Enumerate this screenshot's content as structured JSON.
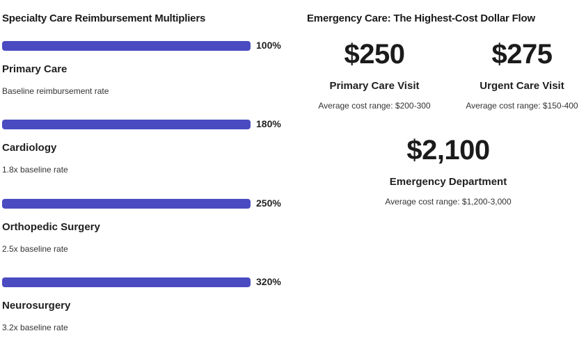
{
  "left_panel": {
    "title": "Specialty Care Reimbursement Multipliers",
    "items": [
      {
        "name": "Primary Care",
        "percent_label": "100%",
        "percent_value": 100,
        "description": "Baseline reimbursement rate",
        "bar_color": "#4a4bc0"
      },
      {
        "name": "Cardiology",
        "percent_label": "180%",
        "percent_value": 180,
        "description": "1.8x baseline rate",
        "bar_color": "#4a4bc0"
      },
      {
        "name": "Orthopedic Surgery",
        "percent_label": "250%",
        "percent_value": 250,
        "description": "2.5x baseline rate",
        "bar_color": "#4a4bc0"
      },
      {
        "name": "Neurosurgery",
        "percent_label": "320%",
        "percent_value": 320,
        "description": "3.2x baseline rate",
        "bar_color": "#4a4bc0"
      }
    ]
  },
  "right_panel": {
    "title": "Emergency Care: The Highest-Cost Dollar Flow",
    "cards": [
      {
        "amount": "$250",
        "label": "Primary Care Visit",
        "range": "Average cost range: $200-300"
      },
      {
        "amount": "$275",
        "label": "Urgent Care Visit",
        "range": "Average cost range: $150-400"
      },
      {
        "amount": "$2,100",
        "label": "Emergency Department",
        "range": "Average cost range: $1,200-3,000"
      }
    ]
  }
}
